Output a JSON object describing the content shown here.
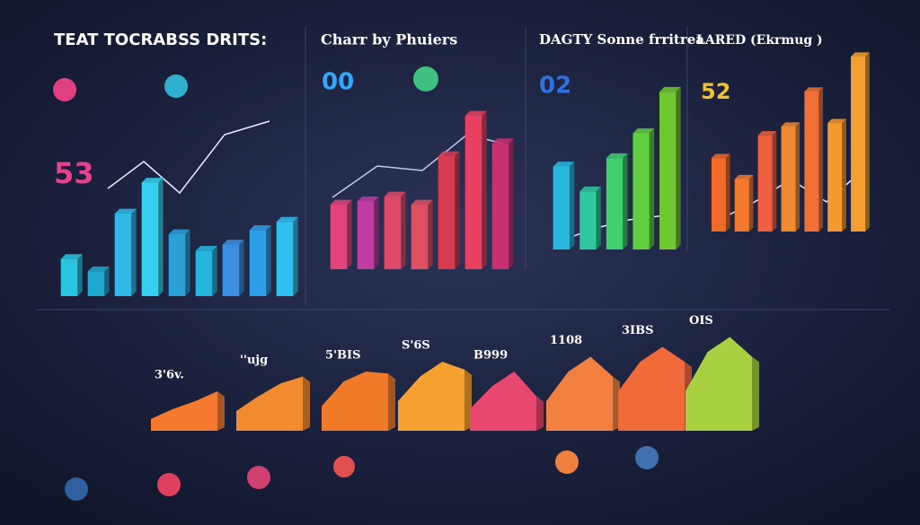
{
  "chart_data": [
    {
      "type": "bar",
      "title": "TEAT TOCRABSS DRITS:",
      "big_number": "53",
      "colors": [
        "#29c4e0",
        "#1fa8d0",
        "#2fb8e8",
        "#38d0f0",
        "#2aa0d8",
        "#24b6e0",
        "#3a8fe0",
        "#2c9fe8",
        "#30c0f0"
      ],
      "values": [
        18,
        12,
        40,
        55,
        30,
        22,
        25,
        32,
        36
      ],
      "ylim": [
        0,
        100
      ]
    },
    {
      "type": "bar",
      "title": "Charr by Phuiers",
      "big_number": "00",
      "colors": [
        "#e0447a",
        "#c03ca0",
        "#e04a6a",
        "#e05060",
        "#d83a50",
        "#e84060",
        "#c83070"
      ],
      "values": [
        40,
        42,
        45,
        40,
        70,
        95,
        78
      ],
      "ylim": [
        0,
        100
      ]
    },
    {
      "type": "bar",
      "title": "DAGTY Sonne frritrea",
      "big_number": "02",
      "colors": [
        "#28b8e0",
        "#30c8a0",
        "#40d070",
        "#60d040",
        "#70c830"
      ],
      "values": [
        50,
        35,
        55,
        70,
        95
      ],
      "ylim": [
        0,
        100
      ]
    },
    {
      "type": "bar",
      "title": "LARED (Ekrmug )",
      "big_number": "52",
      "colors": [
        "#f06a2a",
        "#f27a30",
        "#f06040",
        "#f08a30",
        "#f07038",
        "#f59a30",
        "#f4a030"
      ],
      "values": [
        42,
        30,
        55,
        60,
        80,
        62,
        100
      ],
      "ylim": [
        0,
        100
      ]
    },
    {
      "type": "area",
      "label": "3'6v.",
      "color": "#f57a30",
      "values": [
        12,
        22,
        30,
        40
      ],
      "ylim": [
        0,
        100
      ]
    },
    {
      "type": "area",
      "label": "''ujg",
      "color": "#f28a30",
      "values": [
        20,
        35,
        48,
        55
      ],
      "ylim": [
        0,
        100
      ]
    },
    {
      "type": "area",
      "label": "5'BIS",
      "color": "#f07a2a",
      "values": [
        25,
        50,
        60,
        58
      ],
      "ylim": [
        0,
        100
      ]
    },
    {
      "type": "area",
      "label": "S'6S",
      "color": "#f5a030",
      "values": [
        30,
        55,
        70,
        62
      ],
      "ylim": [
        0,
        100
      ]
    },
    {
      "type": "area",
      "label": "B999",
      "color": "#e84870",
      "values": [
        22,
        45,
        60,
        35
      ],
      "ylim": [
        0,
        100
      ]
    },
    {
      "type": "area",
      "label": "1108",
      "color": "#f28040",
      "values": [
        30,
        60,
        75,
        55
      ],
      "ylim": [
        0,
        100
      ]
    },
    {
      "type": "area",
      "label": "3IBS",
      "color": "#f06a3a",
      "values": [
        40,
        70,
        85,
        70
      ],
      "ylim": [
        0,
        100
      ]
    },
    {
      "type": "area",
      "label": "OIS",
      "color": "#a8d040",
      "values": [
        40,
        80,
        95,
        75
      ],
      "ylim": [
        0,
        100
      ]
    }
  ]
}
